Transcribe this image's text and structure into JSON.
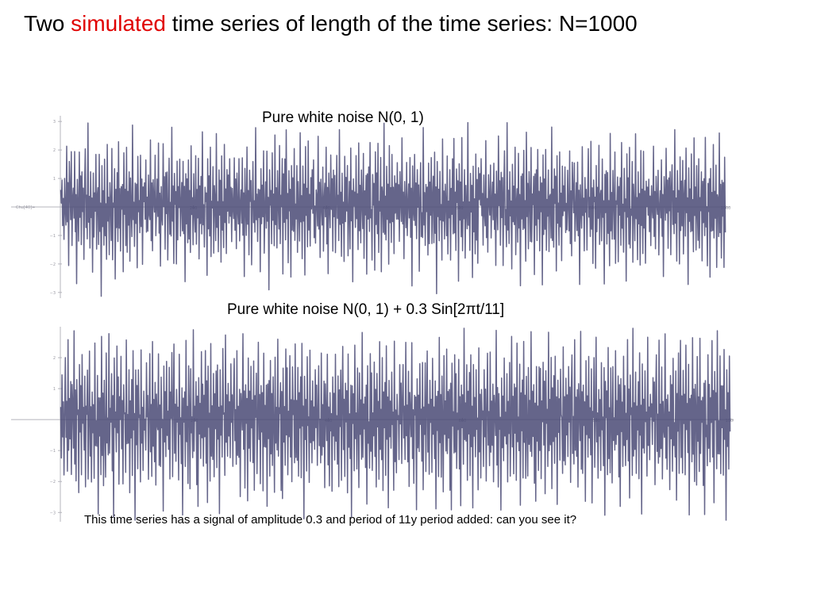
{
  "slide": {
    "title_prefix": "Two ",
    "title_accent": "simulated",
    "title_suffix": " time series of length of the time series: N=1000",
    "accent_color": "#e00000",
    "footnote": "This time series has a signal of amplitude 0.3 and period of 11y period added: can you see it?"
  },
  "chart_data": [
    {
      "type": "line",
      "title": "Pure white noise N(0, 1)",
      "y_axis_label": "Chu[40]=",
      "ylim": [
        -3.2,
        3.2
      ],
      "xlim": [
        0,
        1000
      ],
      "grid": false,
      "series_color": "#4a4a75",
      "n_points": 1000,
      "x_ticks": [
        200,
        400,
        600,
        800,
        1000
      ],
      "x_tick_labels": [
        "200",
        "400",
        "600",
        "800",
        "1000"
      ],
      "y_ticks": [
        3,
        2,
        1,
        -1,
        -2,
        -3
      ],
      "y_tick_labels": [
        "3",
        "2",
        "1",
        "−1",
        "−2",
        "−3"
      ],
      "series": [
        {
          "name": "",
          "values": [
            1.0,
            -0.2,
            1.3,
            -0.7,
            0.4,
            -1.1,
            0.9,
            0.1,
            -0.5,
            2.1,
            -0.9,
            0.6,
            -1.8,
            1.2,
            0.3,
            -0.4,
            1.6,
            -1.3,
            0.2,
            0.8,
            -0.6,
            1.9,
            -1.0,
            0.5,
            -2.4,
            1.1,
            0.0,
            -0.8,
            2.2,
            -0.3,
            0.7,
            -1.5,
            1.4,
            -0.1,
            0.9,
            -1.9,
            0.4,
            1.7,
            -0.7,
            0.2,
            -1.2,
            2.6,
            -0.5,
            0.6,
            -1.6,
            1.0,
            -0.2,
            0.3,
            -2.0,
            1.5,
            -0.9,
            0.8,
            -0.4,
            1.8,
            -1.4,
            0.1,
            0.7,
            -1.1,
            2.0,
            -0.6,
            0.4,
            -2.8,
            1.2,
            -0.3,
            0.9,
            -1.0,
            1.6,
            -0.8,
            0.2,
            -1.7,
            2.3,
            -0.5,
            0.6,
            -1.3,
            1.1,
            0.0,
            -0.9,
            1.9,
            -1.6,
            0.5,
            -0.2,
            1.4,
            -2.2,
            0.8,
            -0.4,
            1.3,
            -1.2,
            2.4,
            -0.7,
            0.3,
            -1.8,
            1.0,
            -0.1,
            0.6,
            -2.5,
            1.7,
            -0.6,
            0.9,
            -1.0,
            2.1,
            -1.4,
            0.2,
            -0.3,
            1.5,
            -1.9,
            0.7,
            0.1,
            -1.1,
            2.7,
            -0.8,
            0.4,
            -1.5,
            1.2,
            -0.2,
            0.8,
            -2.1,
            1.8,
            -0.5,
            0.3,
            -1.3,
            2.0,
            -0.9,
            0.6,
            -1.7,
            1.1,
            0.0
          ],
          "values_note_removed": true
        }
      ]
    },
    {
      "type": "line",
      "title": "Pure white noise N(0, 1) + 0.3 Sin[2πt/11]",
      "ylim": [
        -3.3,
        3.0
      ],
      "xlim": [
        0,
        1000
      ],
      "grid": false,
      "series_color": "#4a4a75",
      "n_points": 1000,
      "x_ticks": [
        200,
        400,
        600,
        800,
        1000
      ],
      "x_tick_labels": [
        "200",
        "400",
        "600",
        "800",
        "1000"
      ],
      "y_ticks": [
        2,
        1,
        -1,
        -2,
        -3
      ],
      "y_tick_labels": [
        "2",
        "1",
        "−1",
        "−2",
        "−3"
      ],
      "series": [
        {
          "name": "",
          "values": [
            0.4,
            -1.2,
            1.5,
            -0.3,
            0.9,
            -1.8,
            0.6,
            1.9,
            -0.7,
            0.2,
            -1.5,
            2.2,
            -0.9,
            0.5,
            -1.0,
            1.3,
            -2.1,
            0.8,
            0.1,
            -0.6,
            2.5,
            -1.3,
            0.7,
            -1.9,
            1.1,
            -0.2,
            0.4,
            -2.6,
            1.7,
            -0.8,
            0.9,
            -1.4,
            2.0,
            -0.5,
            0.3,
            -1.1,
            1.6,
            -2.3,
            0.6,
            -0.1,
            1.8,
            -1.6,
            0.2,
            2.4,
            -1.0,
            0.5,
            -1.7,
            1.2,
            -0.4,
            0.8,
            -2.0,
            2.1,
            -0.7,
            0.3,
            -1.2,
            1.4,
            -2.8,
            0.9,
            -0.3,
            1.0,
            -1.5,
            2.3,
            -0.9,
            0.6,
            -1.8,
            1.5,
            0.0,
            -2.2,
            1.9,
            -0.6,
            0.4,
            -1.3,
            2.6,
            -1.1,
            0.7,
            -0.2,
            1.1,
            -1.9,
            0.8,
            -2.9,
            1.6,
            -0.5,
            0.2,
            -1.4,
            2.0,
            -0.8,
            1.3,
            -1.7,
            0.5,
            -0.3,
            2.2,
            -1.2,
            0.9,
            -2.4,
            1.4,
            -0.1,
            0.6,
            -1.6,
            2.7,
            -0.9,
            0.3,
            -1.0,
            1.7,
            -2.1,
            0.7,
            -0.4,
            1.2,
            -1.8,
            2.1,
            -0.6,
            0.5,
            -3.1,
            1.5,
            -0.7,
            0.8,
            -1.3,
            1.9,
            -0.2,
            0.4,
            -2.0,
            2.4,
            -1.0,
            0.6,
            -1.5,
            1.1,
            -0.3
          ],
          "values_note_removed": true
        }
      ]
    }
  ]
}
